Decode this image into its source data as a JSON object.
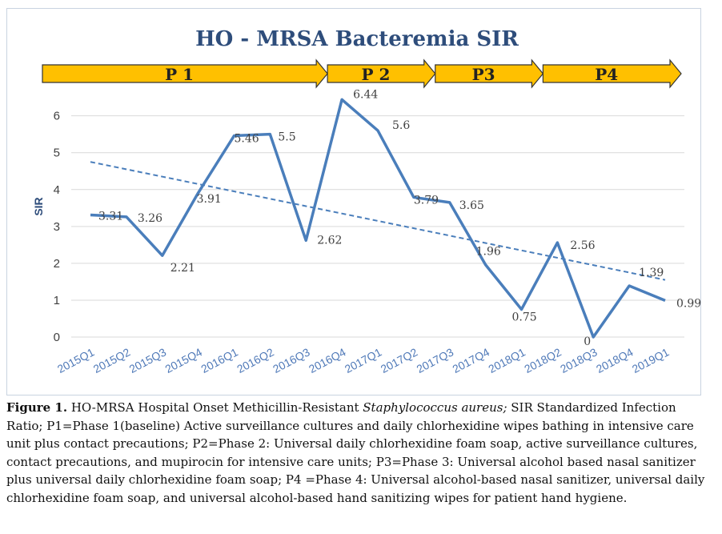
{
  "chart_data": {
    "type": "line",
    "title": "HO - MRSA Bacteremia SIR",
    "ylabel": "SIR",
    "xlabel": "",
    "ylim": [
      0,
      6.6
    ],
    "yticks": [
      0,
      1,
      2,
      3,
      4,
      5,
      6
    ],
    "grid": true,
    "categories": [
      "2015Q1",
      "2015Q2",
      "2015Q3",
      "2015Q4",
      "2016Q1",
      "2016Q2",
      "2016Q3",
      "2016Q4",
      "2017Q1",
      "2017Q2",
      "2017Q3",
      "2017Q4",
      "2018Q1",
      "2018Q2",
      "2018Q3",
      "2018Q4",
      "2019Q1"
    ],
    "series": [
      {
        "values": [
          3.31,
          3.26,
          2.21,
          3.91,
          5.46,
          5.5,
          2.62,
          6.44,
          5.6,
          3.79,
          3.65,
          1.96,
          0.75,
          2.56,
          0,
          1.39,
          0.99
        ],
        "labels": [
          "3.31",
          "3.26",
          "2.21",
          "3.91",
          "5.46",
          "5.5",
          "2.62",
          "6.44",
          "5.6",
          "3.79",
          "3.65",
          "1.96",
          "0.75",
          "2.56",
          "0",
          "1.39",
          "0.99"
        ],
        "color": "#4a7ebb"
      }
    ],
    "trendline": {
      "style": "dashed",
      "color": "#4a7ebb",
      "start": 4.75,
      "end": 1.55
    },
    "phases": [
      {
        "label": "P 1",
        "start": 0,
        "end": 7,
        "color": "#ffc000"
      },
      {
        "label": "P 2",
        "start": 7,
        "end": 10,
        "color": "#ffc000"
      },
      {
        "label": "P3",
        "start": 10,
        "end": 13,
        "color": "#ffc000"
      },
      {
        "label": "P4",
        "start": 13,
        "end": 16,
        "color": "#ffc000"
      }
    ]
  },
  "caption": {
    "figure_label": "Figure 1.",
    "part1": " HO-MRSA Hospital Onset Methicillin-Resistant ",
    "italic": "Staphylococcus aureus;",
    "part2": " SIR Standardized Infection Ratio; P1=Phase 1(baseline) Active surveillance cultures and daily chlorhexidine wipes bathing in intensive care unit plus contact precautions; P2=Phase 2: Universal daily chlorhexidine foam soap, active surveillance cultures, contact precautions, and mupirocin for intensive care units; P3=Phase 3: Universal alcohol based nasal sanitizer plus universal daily chlorhexidine foam soap; P4 =Phase 4:  Universal alcohol-based nasal sanitizer, universal daily chlorhexidine foam soap, and universal alcohol-based hand sanitizing wipes for patient hand hygiene."
  }
}
